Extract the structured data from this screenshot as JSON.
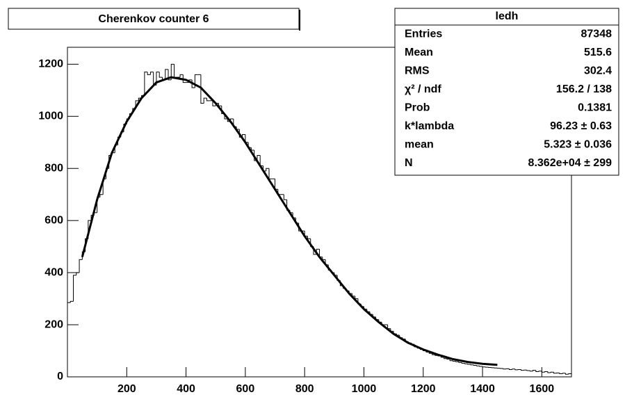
{
  "chart_data": {
    "type": "histogram",
    "title": "Cherenkov counter 6",
    "bins": [
      0,
      10,
      20,
      30,
      40,
      50,
      60,
      70,
      80,
      90,
      100,
      110,
      120,
      130,
      140,
      150,
      160,
      170,
      180,
      190,
      200,
      210,
      220,
      230,
      240,
      250,
      260,
      270,
      280,
      290,
      300,
      310,
      320,
      330,
      340,
      350,
      360,
      370,
      380,
      390,
      400,
      410,
      420,
      430,
      440,
      450,
      460,
      470,
      480,
      490,
      500,
      510,
      520,
      530,
      540,
      550,
      560,
      570,
      580,
      590,
      600,
      610,
      620,
      630,
      640,
      650,
      660,
      670,
      680,
      690,
      700,
      710,
      720,
      730,
      740,
      750,
      760,
      770,
      780,
      790,
      800,
      810,
      820,
      830,
      840,
      850,
      860,
      870,
      880,
      890,
      900,
      910,
      920,
      930,
      940,
      950,
      960,
      970,
      980,
      990,
      1000,
      1010,
      1020,
      1030,
      1040,
      1050,
      1060,
      1070,
      1080,
      1090,
      1100,
      1110,
      1120,
      1130,
      1140,
      1150,
      1160,
      1170,
      1180,
      1190,
      1200,
      1210,
      1220,
      1230,
      1240,
      1250,
      1260,
      1270,
      1280,
      1290,
      1300,
      1310,
      1320,
      1330,
      1340,
      1350,
      1360,
      1370,
      1380,
      1390,
      1400,
      1410,
      1420,
      1430,
      1440,
      1450,
      1460,
      1470,
      1480,
      1490,
      1500,
      1510,
      1520,
      1530,
      1540,
      1550,
      1560,
      1570,
      1580,
      1590,
      1600,
      1610,
      1620,
      1630,
      1640,
      1650,
      1660,
      1670,
      1680,
      1690,
      1700
    ],
    "counts": [
      285,
      290,
      390,
      400,
      450,
      480,
      530,
      600,
      620,
      630,
      690,
      700,
      760,
      800,
      850,
      860,
      890,
      920,
      940,
      970,
      990,
      1010,
      1030,
      1060,
      1070,
      1080,
      1170,
      1160,
      1170,
      1120,
      1170,
      1150,
      1140,
      1180,
      1140,
      1200,
      1150,
      1150,
      1160,
      1130,
      1130,
      1140,
      1110,
      1160,
      1160,
      1050,
      1070,
      1060,
      1060,
      1040,
      1050,
      1040,
      1010,
      990,
      980,
      990,
      960,
      950,
      920,
      930,
      900,
      880,
      870,
      830,
      850,
      810,
      790,
      800,
      760,
      760,
      720,
      700,
      700,
      680,
      640,
      630,
      610,
      590,
      560,
      560,
      540,
      530,
      500,
      470,
      490,
      460,
      450,
      430,
      410,
      400,
      390,
      370,
      350,
      340,
      330,
      320,
      310,
      300,
      280,
      270,
      260,
      250,
      240,
      230,
      220,
      210,
      200,
      200,
      185,
      175,
      165,
      160,
      150,
      145,
      135,
      130,
      125,
      115,
      110,
      105,
      100,
      95,
      90,
      85,
      82,
      80,
      75,
      70,
      68,
      62,
      60,
      58,
      55,
      52,
      50,
      48,
      46,
      44,
      42,
      40,
      38,
      37,
      36,
      35,
      34,
      33,
      32,
      30,
      31,
      28,
      30,
      27,
      28,
      25,
      26,
      24,
      22,
      25,
      20,
      22,
      18,
      20,
      16,
      18,
      14,
      15,
      12,
      14,
      10,
      12
    ],
    "fit": {
      "x": [
        50,
        100,
        150,
        200,
        250,
        300,
        350,
        400,
        450,
        500,
        550,
        600,
        650,
        700,
        750,
        800,
        850,
        900,
        950,
        1000,
        1050,
        1100,
        1150,
        1200,
        1250,
        1300,
        1350,
        1400,
        1450
      ],
      "y": [
        460,
        680,
        860,
        980,
        1070,
        1130,
        1150,
        1140,
        1110,
        1050,
        980,
        900,
        810,
        720,
        630,
        540,
        460,
        390,
        320,
        260,
        210,
        165,
        130,
        105,
        85,
        68,
        57,
        50,
        46
      ]
    },
    "xlim": [
      0,
      1700
    ],
    "ylim": [
      0,
      1265
    ],
    "xticks": [
      200,
      400,
      600,
      800,
      1000,
      1200,
      1400,
      1600
    ],
    "yticks": [
      0,
      200,
      400,
      600,
      800,
      1000,
      1200
    ],
    "stats": {
      "title": "ledh",
      "rows": [
        [
          "Entries",
          "87348"
        ],
        [
          "Mean",
          "515.6"
        ],
        [
          "RMS",
          "302.4"
        ],
        [
          "χ² / ndf",
          "156.2 / 138"
        ],
        [
          "Prob",
          "0.1381"
        ],
        [
          "k*lambda",
          "96.23 ± 0.63"
        ],
        [
          "mean",
          "5.323 ± 0.036"
        ],
        [
          "N",
          "8.362e+04 ± 299"
        ]
      ]
    }
  }
}
